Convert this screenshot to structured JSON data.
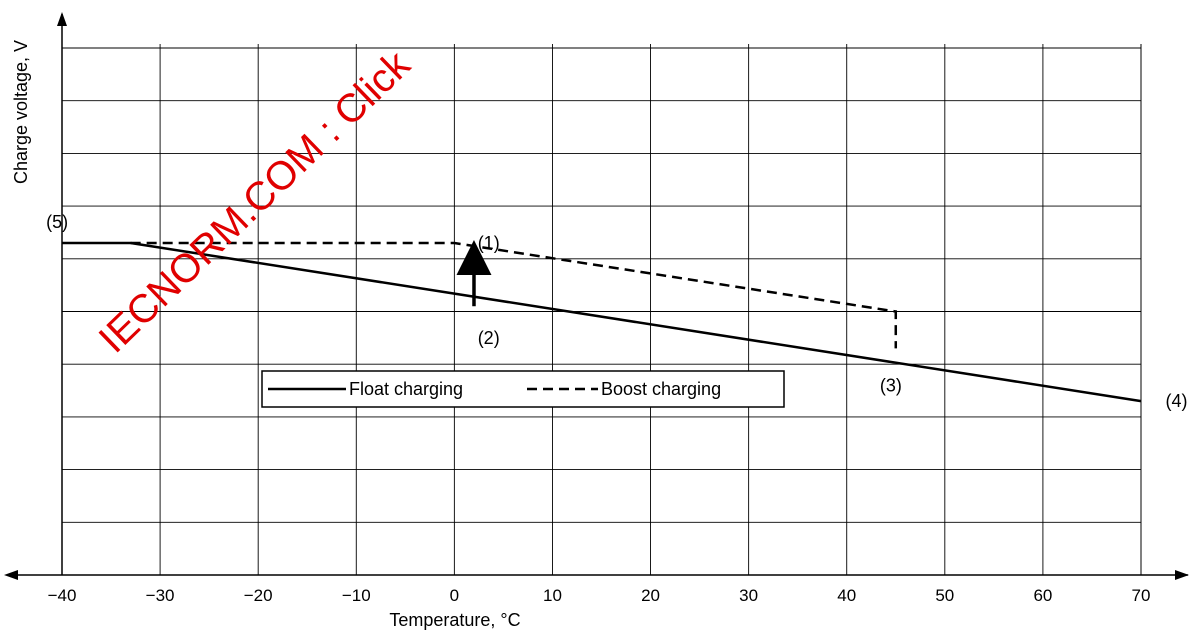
{
  "chart_data": {
    "type": "line",
    "x": [
      -40,
      -30,
      -20,
      -10,
      0,
      10,
      20,
      30,
      40,
      50,
      60,
      70
    ],
    "xlim": [
      -40,
      70
    ],
    "xlabel": "Temperature, °C",
    "ylabel": "Charge voltage, V",
    "grid": true,
    "y_tick_labels_shown": false,
    "series": [
      {
        "name": "Float charging",
        "style": "solid",
        "points": [
          [
            -40,
            6.3
          ],
          [
            -33,
            6.3
          ],
          [
            70,
            3.3
          ]
        ]
      },
      {
        "name": "Boost charging",
        "style": "dashed",
        "points": [
          [
            -33,
            6.3
          ],
          [
            0,
            6.3
          ],
          [
            45,
            5.0
          ],
          [
            45,
            4.3
          ]
        ]
      }
    ],
    "legend": {
      "position": "center-left",
      "entries": [
        {
          "label": "Float charging",
          "style": "solid"
        },
        {
          "label": "Boost charging",
          "style": "dashed"
        }
      ]
    },
    "annotations": [
      {
        "label": "(1)",
        "x": 3.5,
        "y": 6.3
      },
      {
        "label": "(2)",
        "x": 3.5,
        "y": 4.5
      },
      {
        "label": "(3)",
        "x": 44.5,
        "y": 3.6
      },
      {
        "label": "(4)",
        "x": 72.5,
        "y": 3.3
      },
      {
        "label": "(5)",
        "x": -40.5,
        "y": 6.7
      }
    ],
    "arrow": {
      "x": 2,
      "from_y": 5.1,
      "to_y": 6.1
    }
  },
  "watermark": {
    "text": "IECNORM.COM : Click",
    "color": "#e00000"
  }
}
